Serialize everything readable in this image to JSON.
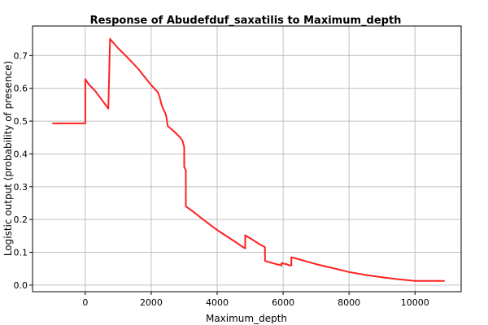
{
  "chart_data": {
    "type": "line",
    "title": "Response of Abudefduf_saxatilis to Maximum_depth",
    "xlabel": "Maximum_depth",
    "ylabel": "Logistic output (probability of presence)",
    "xlim": [
      -1600,
      11400
    ],
    "ylim": [
      -0.02,
      0.79
    ],
    "x_ticks": [
      0,
      2000,
      4000,
      6000,
      8000,
      10000
    ],
    "y_ticks": [
      0.0,
      0.1,
      0.2,
      0.3,
      0.4,
      0.5,
      0.6,
      0.7
    ],
    "x_tick_labels": [
      "0",
      "2000",
      "4000",
      "6000",
      "8000",
      "10000"
    ],
    "y_tick_labels": [
      "0.0",
      "0.1",
      "0.2",
      "0.3",
      "0.4",
      "0.5",
      "0.6",
      "0.7"
    ],
    "grid": true,
    "legend": "none",
    "line_color": "#ff2020",
    "grid_color": "#c0c0c0",
    "series": [
      {
        "x": [
          -1000,
          0,
          0,
          100,
          300,
          500,
          700,
          700,
          750,
          750,
          1000,
          1300,
          1600,
          1800,
          2000,
          2200,
          2250,
          2300,
          2350,
          2400,
          2450,
          2500,
          2500,
          2700,
          2900,
          2950,
          3000,
          3000,
          3050,
          3050,
          3300,
          3600,
          4000,
          4400,
          4800,
          4850,
          4850,
          5050,
          5250,
          5450,
          5450,
          5650,
          5950,
          5950,
          6100,
          6200,
          6250,
          6250,
          6500,
          7000,
          7500,
          8000,
          8500,
          9000,
          9500,
          10000,
          10500,
          10900
        ],
        "values": [
          0.493,
          0.493,
          0.628,
          0.613,
          0.592,
          0.565,
          0.538,
          0.538,
          0.751,
          0.75,
          0.722,
          0.692,
          0.66,
          0.635,
          0.61,
          0.588,
          0.575,
          0.555,
          0.54,
          0.53,
          0.518,
          0.485,
          0.485,
          0.468,
          0.448,
          0.44,
          0.42,
          0.36,
          0.35,
          0.24,
          0.222,
          0.198,
          0.168,
          0.142,
          0.115,
          0.112,
          0.152,
          0.14,
          0.127,
          0.116,
          0.074,
          0.068,
          0.06,
          0.067,
          0.064,
          0.06,
          0.06,
          0.085,
          0.078,
          0.064,
          0.052,
          0.04,
          0.031,
          0.024,
          0.018,
          0.013,
          0.013,
          0.013
        ]
      }
    ]
  }
}
